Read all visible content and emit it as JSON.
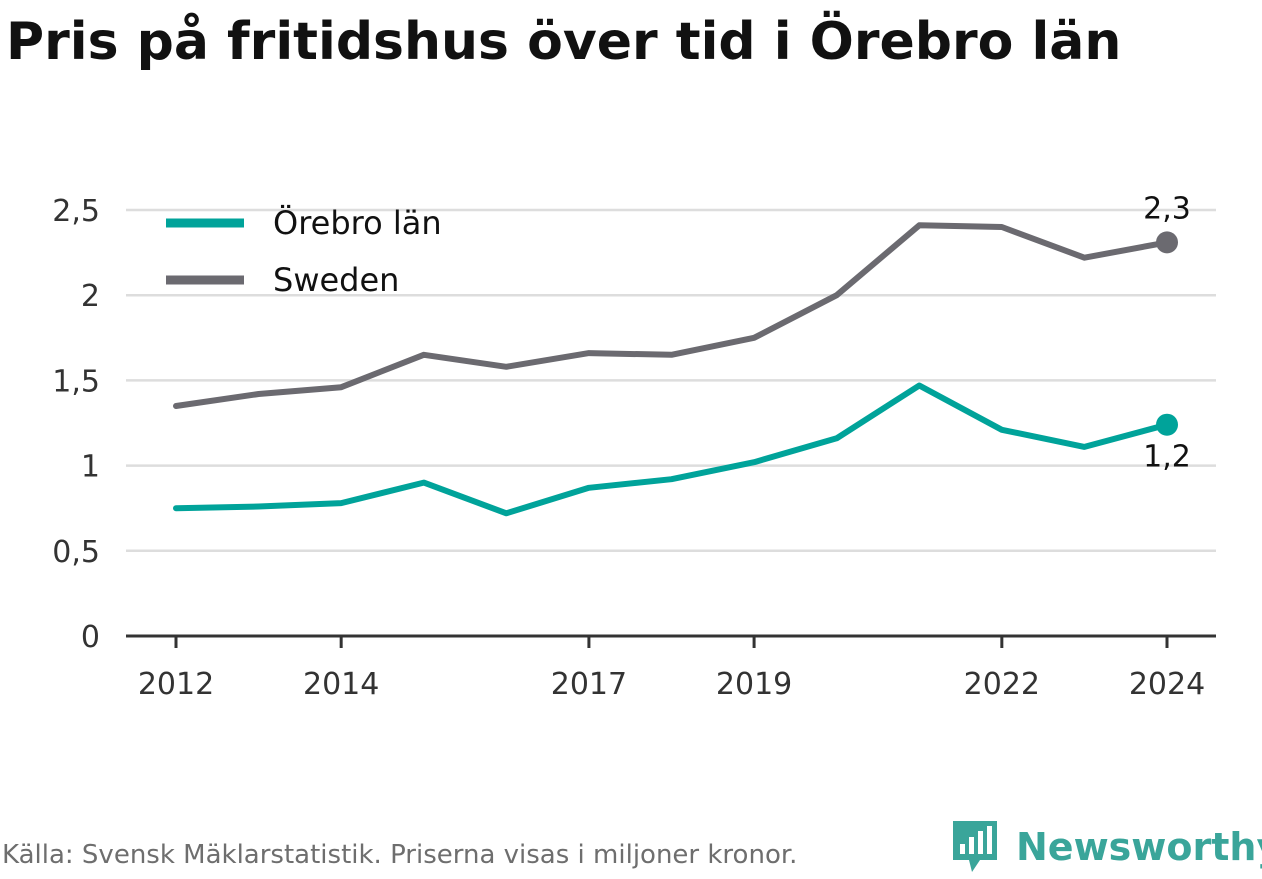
{
  "title": "Pris på fritidshus över tid i Örebro län",
  "footer": {
    "source": "Källa: Svensk Mäklarstatistik. Priserna visas i miljoner kronor.",
    "brand": "Newsworthy",
    "brand_logo_icon": "bar-chart-speech-bubble-icon"
  },
  "colors": {
    "orebro": "#00a39a",
    "sweden": "#6b6a70",
    "grid": "#dddddd",
    "axis": "#333333",
    "brand": "#3aa59a"
  },
  "chart_data": {
    "type": "line",
    "title": "Pris på fritidshus över tid i Örebro län",
    "xlabel": "",
    "ylabel": "",
    "x": [
      2012,
      2013,
      2014,
      2015,
      2016,
      2017,
      2018,
      2019,
      2020,
      2021,
      2022,
      2023,
      2024
    ],
    "x_tick_labels": [
      "2012",
      "2014",
      "2017",
      "2019",
      "2022",
      "2024"
    ],
    "y_ticks": [
      0,
      0.5,
      1,
      1.5,
      2,
      2.5
    ],
    "y_tick_labels": [
      "0",
      "0,5",
      "1",
      "1,5",
      "2",
      "2,5"
    ],
    "ylim": [
      0,
      2.5
    ],
    "grid": true,
    "legend_position": "top-left",
    "series": [
      {
        "name": "Örebro län",
        "color": "#00a39a",
        "values": [
          0.75,
          0.76,
          0.78,
          0.9,
          0.72,
          0.87,
          0.92,
          1.02,
          1.16,
          1.47,
          1.21,
          1.11,
          1.24
        ],
        "end_label": "1,2"
      },
      {
        "name": "Sweden",
        "color": "#6b6a70",
        "values": [
          1.35,
          1.42,
          1.46,
          1.65,
          1.58,
          1.66,
          1.65,
          1.75,
          2.0,
          2.41,
          2.4,
          2.22,
          2.31
        ],
        "end_label": "2,3"
      }
    ]
  }
}
